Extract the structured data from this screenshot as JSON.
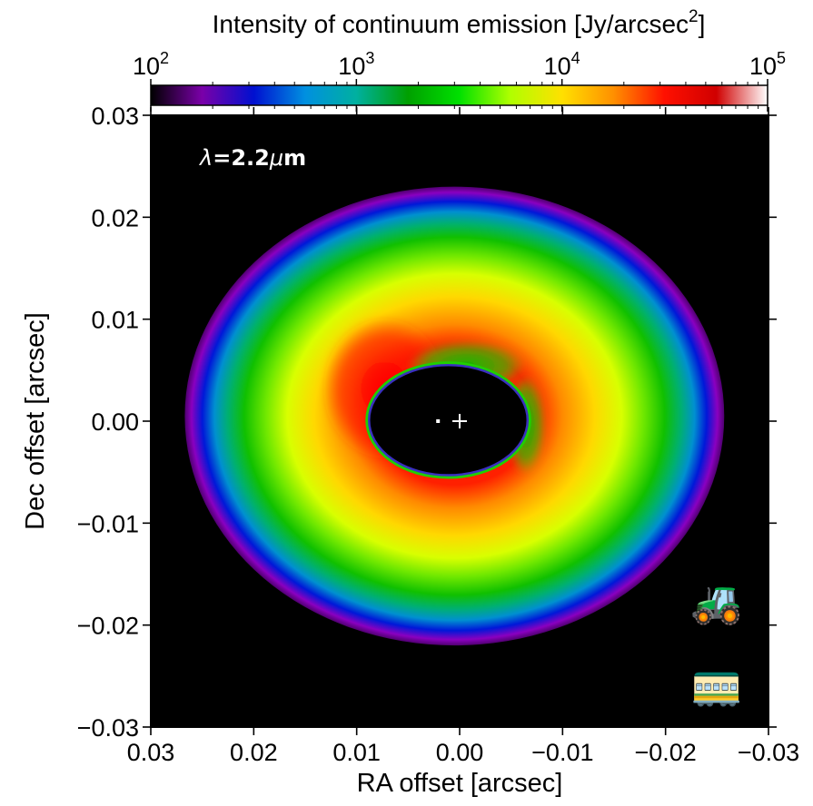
{
  "chart_data": {
    "type": "heatmap",
    "colorbar": {
      "title_main": "Intensity of continuum emission [Jy/arcsec",
      "title_sup": "2",
      "title_end": "]",
      "scale": "log",
      "range": [
        100,
        100000
      ],
      "ticks": [
        {
          "base": "10",
          "exp": "2",
          "value": 100
        },
        {
          "base": "10",
          "exp": "3",
          "value": 1000
        },
        {
          "base": "10",
          "exp": "4",
          "value": 10000
        },
        {
          "base": "10",
          "exp": "5",
          "value": 100000
        }
      ],
      "colormap": [
        "#000000",
        "#7a00a8",
        "#0010d0",
        "#0090e0",
        "#00b0a0",
        "#00a000",
        "#00e000",
        "#b0ff00",
        "#ffe000",
        "#ff9000",
        "#ff1000",
        "#d00000",
        "#ffffff"
      ]
    },
    "xlabel": "RA offset [arcsec]",
    "ylabel": "Dec offset [arcsec]",
    "xlim": [
      0.03,
      -0.03
    ],
    "ylim": [
      -0.03,
      0.03
    ],
    "xticks": [
      {
        "value": 0.03,
        "label": "0.03"
      },
      {
        "value": 0.02,
        "label": "0.02"
      },
      {
        "value": 0.01,
        "label": "0.01"
      },
      {
        "value": 0.0,
        "label": "0.00"
      },
      {
        "value": -0.01,
        "label": "−0.01"
      },
      {
        "value": -0.02,
        "label": "−0.02"
      },
      {
        "value": -0.03,
        "label": "−0.03"
      }
    ],
    "yticks": [
      {
        "value": 0.03,
        "label": "0.03"
      },
      {
        "value": 0.02,
        "label": "0.02"
      },
      {
        "value": 0.01,
        "label": "0.01"
      },
      {
        "value": 0.0,
        "label": "0.00"
      },
      {
        "value": -0.01,
        "label": "−0.01"
      },
      {
        "value": -0.02,
        "label": "−0.02"
      },
      {
        "value": -0.03,
        "label": "−0.03"
      }
    ],
    "annotation": {
      "lambda": "λ",
      "text": "=2.2",
      "mu": "μ",
      "unit": "m"
    },
    "structure": {
      "ring_outer": {
        "center": [
          0.0005,
          0.0005
        ],
        "radius_x": 0.0262,
        "radius_y": 0.0225
      },
      "cavity": {
        "center": [
          0.0011,
          0.0001
        ],
        "radius_x": 0.0077,
        "radius_y": 0.0054
      },
      "star_marker": [
        0.0,
        0.0
      ],
      "dot_marker": [
        0.0021,
        0.0
      ]
    },
    "icons": [
      "tractor-icon",
      "tram-icon"
    ]
  }
}
